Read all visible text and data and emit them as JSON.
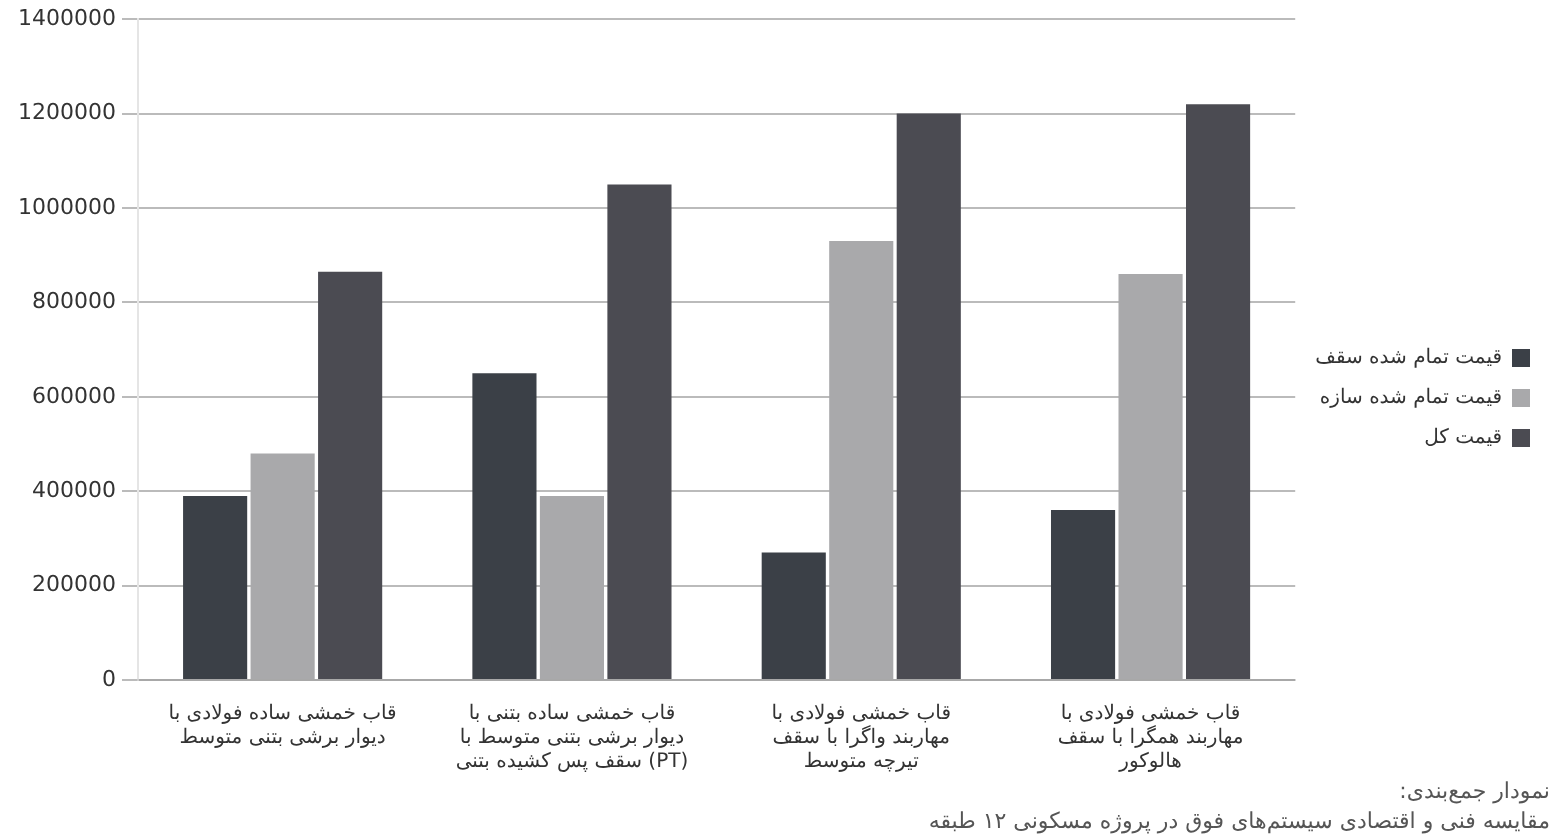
{
  "chart_data": {
    "type": "bar",
    "categories": [
      "قاب خمشی ساده فولادی با دیوار برشی بتنی متوسط",
      "قاب خمشی ساده بتنی با دیوار برشی بتنی متوسط با سقف پس کشیده بتنی (PT)",
      "قاب خمشی فولادی با مهاربند واگرا با سقف تیرچه متوسط",
      "قاب خمشی فولادی با مهاربند همگرا با سقف هالوکور"
    ],
    "series": [
      {
        "name": "قیمت تمام شده سقف",
        "color": "#3b4047",
        "values": [
          390000,
          650000,
          270000,
          360000
        ]
      },
      {
        "name": "قیمت تمام شده سازه",
        "color": "#a9a9ab",
        "values": [
          480000,
          390000,
          930000,
          860000
        ]
      },
      {
        "name": "قیمت کل",
        "color": "#4b4b52",
        "values": [
          865000,
          1050000,
          1200000,
          1220000
        ]
      }
    ],
    "ylim": [
      0,
      1400000
    ],
    "yticks": [
      0,
      200000,
      400000,
      600000,
      800000,
      1000000,
      1200000,
      1400000
    ],
    "grid": "y",
    "legend": "right",
    "annotations": [
      "نمودار جمع‌بندی:",
      "مقایسه فنی و اقتصادی سیستم‌های فوق در پروژه مسکونی ۱۲ طبقه"
    ]
  }
}
